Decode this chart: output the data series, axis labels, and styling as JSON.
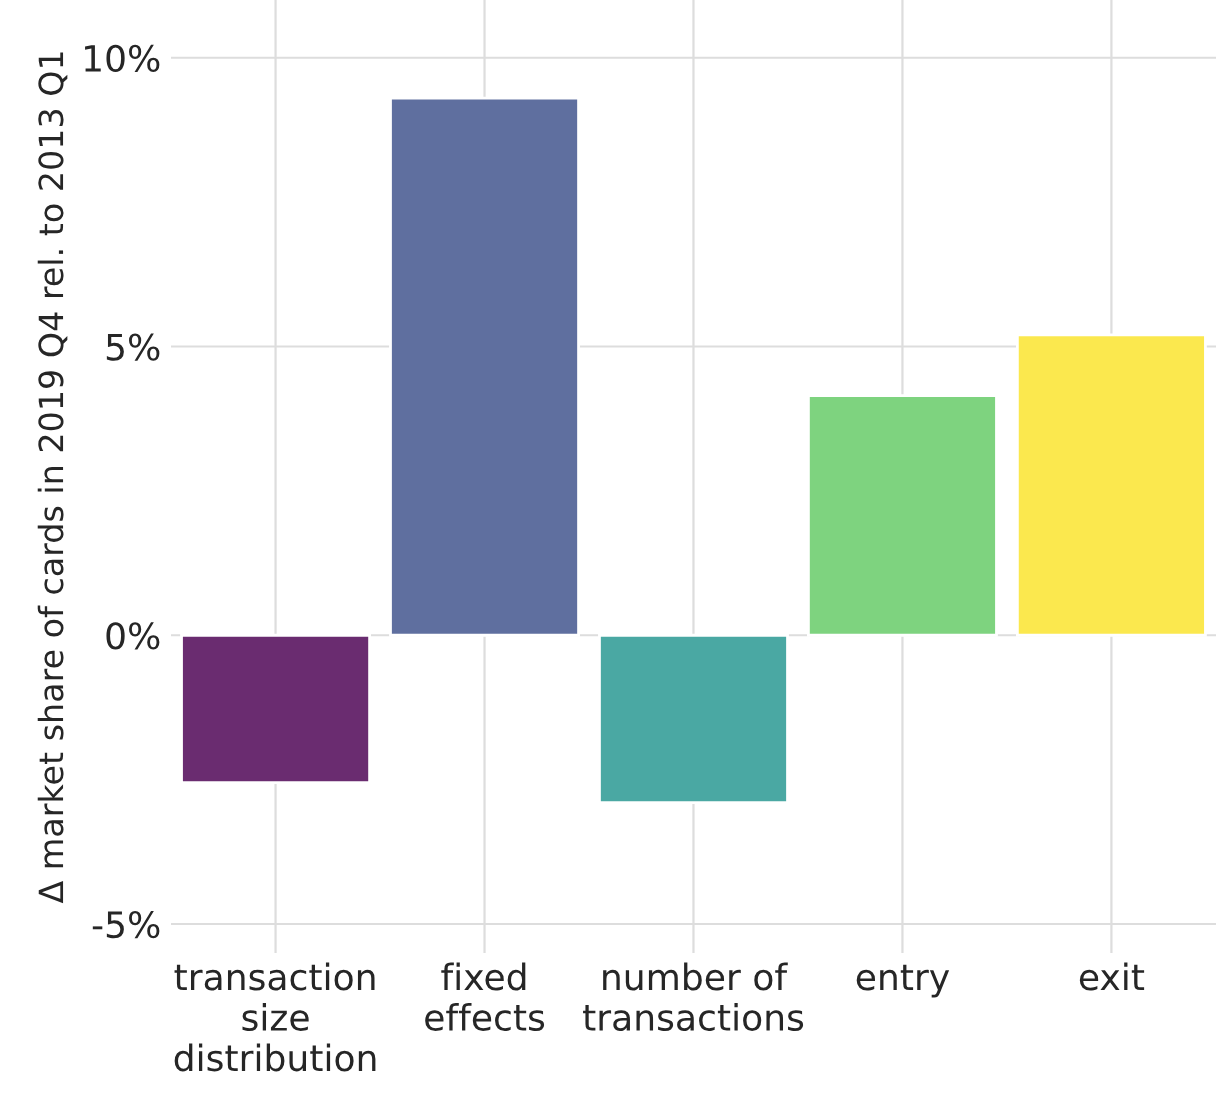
{
  "chart_data": {
    "type": "bar",
    "ylabel": "Δ market share of cards in 2019 Q4 rel. to 2013 Q1",
    "categories": [
      "transaction\nsize\ndistribution",
      "fixed\neffects",
      "number of\ntransactions",
      "entry",
      "exit"
    ],
    "values": [
      -2.55,
      9.3,
      -2.9,
      4.15,
      5.2
    ],
    "colors": [
      "#6a2c70",
      "#5f6f9f",
      "#4aa8a3",
      "#7ed37f",
      "#fbe84e"
    ],
    "ylim": [
      -5.5,
      11
    ],
    "yticks": [
      {
        "value": -5,
        "label": "-5%"
      },
      {
        "value": 0,
        "label": "0%"
      },
      {
        "value": 5,
        "label": "5%"
      },
      {
        "value": 10,
        "label": "10%"
      }
    ],
    "grid": true
  }
}
